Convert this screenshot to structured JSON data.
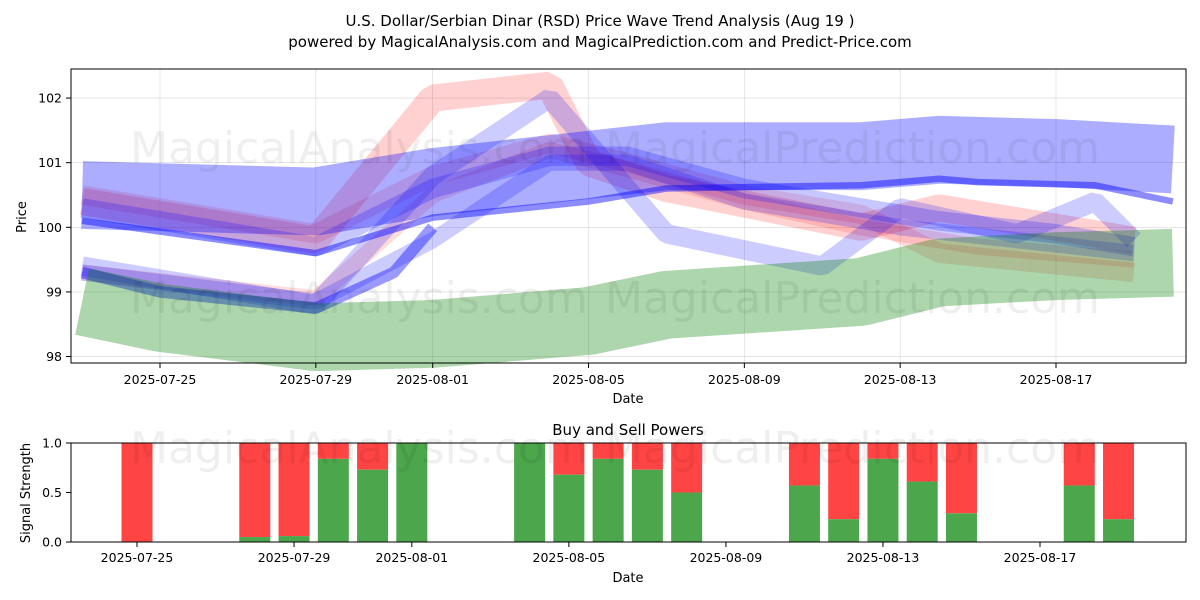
{
  "title": {
    "line1": "U.S. Dollar/Serbian Dinar (RSD) Price Wave Trend Analysis (Aug 19 )",
    "line2": "powered by MagicalAnalysis.com and MagicalPrediction.com and Predict-Price.com"
  },
  "watermarks": {
    "left": "MagicalAnalysis.com",
    "right": "MagicalPrediction.com"
  },
  "colors": {
    "red": "#ff0000",
    "blue": "#0000ff",
    "green": "#008000",
    "buy": "#4ca64c",
    "sell": "#ff4444",
    "grid": "#b0b0b0"
  },
  "chart_data": [
    {
      "type": "area",
      "title": "",
      "xlabel": "Date",
      "ylabel": "Price",
      "ylim": [
        97.9,
        102.45
      ],
      "x_ticks": [
        "2025-07-25",
        "2025-07-29",
        "2025-08-01",
        "2025-08-05",
        "2025-08-09",
        "2025-08-13",
        "2025-08-17"
      ],
      "y_ticks": [
        98,
        99,
        100,
        101,
        102
      ],
      "grid": true,
      "series": [
        {
          "name": "red-band-upper",
          "color": "red",
          "width": 0.42,
          "opacity": 0.18,
          "x": [
            "2025-07-23",
            "2025-07-29",
            "2025-08-01",
            "2025-08-04",
            "2025-08-05",
            "2025-08-07",
            "2025-08-12",
            "2025-08-14",
            "2025-08-19"
          ],
          "y": [
            100.4,
            99.8,
            102.0,
            102.2,
            101.0,
            100.6,
            100.0,
            100.3,
            99.8
          ]
        },
        {
          "name": "red-band-mid",
          "color": "red",
          "width": 0.3,
          "opacity": 0.14,
          "x": [
            "2025-07-23",
            "2025-07-29",
            "2025-08-01",
            "2025-08-04",
            "2025-08-06",
            "2025-08-09",
            "2025-08-12",
            "2025-08-14",
            "2025-08-19"
          ],
          "y": [
            100.5,
            99.9,
            100.8,
            101.3,
            101.0,
            100.5,
            100.2,
            99.6,
            99.3
          ]
        },
        {
          "name": "red-band-low",
          "color": "red",
          "width": 0.25,
          "opacity": 0.14,
          "x": [
            "2025-07-23",
            "2025-07-29",
            "2025-08-01",
            "2025-08-04",
            "2025-08-06",
            "2025-08-09",
            "2025-08-12",
            "2025-08-15",
            "2025-08-19"
          ],
          "y": [
            99.3,
            98.9,
            100.5,
            101.2,
            100.9,
            100.4,
            100.0,
            99.7,
            99.5
          ]
        },
        {
          "name": "blue-wide-band",
          "color": "blue",
          "width": 1.05,
          "opacity": 0.32,
          "x": [
            "2025-07-23",
            "2025-07-29",
            "2025-08-01",
            "2025-08-04",
            "2025-08-07",
            "2025-08-10",
            "2025-08-12",
            "2025-08-14",
            "2025-08-17",
            "2025-08-20"
          ],
          "y": [
            100.5,
            100.4,
            100.7,
            100.9,
            101.1,
            101.1,
            101.1,
            101.2,
            101.15,
            101.05
          ]
        },
        {
          "name": "blue-trend-line",
          "color": "blue",
          "width": 0.1,
          "opacity": 0.45,
          "x": [
            "2025-07-23",
            "2025-07-29",
            "2025-08-01",
            "2025-08-05",
            "2025-08-07",
            "2025-08-12",
            "2025-08-14",
            "2025-08-15",
            "2025-08-18",
            "2025-08-20"
          ],
          "y": [
            100.1,
            99.6,
            100.15,
            100.4,
            100.6,
            100.65,
            100.75,
            100.7,
            100.65,
            100.4
          ]
        },
        {
          "name": "blue-wave-1",
          "color": "blue",
          "width": 0.3,
          "opacity": 0.22,
          "x": [
            "2025-07-23",
            "2025-07-29",
            "2025-08-01",
            "2025-08-04",
            "2025-08-06",
            "2025-08-09",
            "2025-08-12",
            "2025-08-14",
            "2025-08-17",
            "2025-08-19"
          ],
          "y": [
            100.3,
            99.7,
            100.6,
            101.1,
            101.1,
            100.6,
            100.3,
            100.1,
            99.9,
            99.7
          ]
        },
        {
          "name": "blue-wave-2",
          "color": "blue",
          "width": 0.3,
          "opacity": 0.2,
          "x": [
            "2025-07-23",
            "2025-07-29",
            "2025-08-01",
            "2025-08-04",
            "2025-08-07",
            "2025-08-11",
            "2025-08-13",
            "2025-08-16",
            "2025-08-18",
            "2025-08-19"
          ],
          "y": [
            99.4,
            98.8,
            100.8,
            102.0,
            99.9,
            99.4,
            100.3,
            99.9,
            100.4,
            99.8
          ]
        },
        {
          "name": "blue-wave-3",
          "color": "blue",
          "width": 0.25,
          "opacity": 0.2,
          "x": [
            "2025-07-23",
            "2025-07-29",
            "2025-08-01",
            "2025-08-04",
            "2025-08-06",
            "2025-08-09",
            "2025-08-13",
            "2025-08-16",
            "2025-08-19"
          ],
          "y": [
            99.3,
            98.85,
            99.8,
            101.0,
            101.0,
            100.4,
            100.0,
            99.8,
            99.6
          ]
        },
        {
          "name": "blue-lower-line",
          "color": "blue",
          "width": 0.18,
          "opacity": 0.4,
          "x": [
            "2025-07-23",
            "2025-07-25",
            "2025-07-29",
            "2025-07-31",
            "2025-08-01"
          ],
          "y": [
            99.3,
            99.0,
            98.75,
            99.3,
            100.0
          ]
        },
        {
          "name": "green-band",
          "color": "green",
          "width": 1.05,
          "opacity": 0.32,
          "x": [
            "2025-07-23",
            "2025-07-25",
            "2025-07-29",
            "2025-08-01",
            "2025-08-05",
            "2025-08-07",
            "2025-08-12",
            "2025-08-14",
            "2025-08-17",
            "2025-08-20"
          ],
          "y": [
            98.85,
            98.6,
            98.3,
            98.35,
            98.55,
            98.8,
            99.0,
            99.3,
            99.4,
            99.45
          ]
        }
      ]
    },
    {
      "type": "bar",
      "title": "Buy and Sell Powers",
      "xlabel": "Date",
      "ylabel": "Signal Strength",
      "ylim": [
        0,
        1.0
      ],
      "x_ticks": [
        "2025-07-25",
        "2025-07-29",
        "2025-08-01",
        "2025-08-05",
        "2025-08-09",
        "2025-08-13",
        "2025-08-17"
      ],
      "y_ticks": [
        "0.0",
        "0.5",
        "1.0"
      ],
      "series": [
        {
          "name": "Buy",
          "color": "buy"
        },
        {
          "name": "Sell",
          "color": "sell"
        }
      ],
      "bars": [
        {
          "date": "2025-07-25",
          "buy": 0.0
        },
        {
          "date": "2025-07-28",
          "buy": 0.05
        },
        {
          "date": "2025-07-29",
          "buy": 0.06
        },
        {
          "date": "2025-07-30",
          "buy": 0.84
        },
        {
          "date": "2025-07-31",
          "buy": 0.73
        },
        {
          "date": "2025-08-01",
          "buy": 1.0
        },
        {
          "date": "2025-08-04",
          "buy": 1.0
        },
        {
          "date": "2025-08-05",
          "buy": 0.68
        },
        {
          "date": "2025-08-06",
          "buy": 0.84
        },
        {
          "date": "2025-08-07",
          "buy": 0.73
        },
        {
          "date": "2025-08-08",
          "buy": 0.5
        },
        {
          "date": "2025-08-11",
          "buy": 0.57
        },
        {
          "date": "2025-08-12",
          "buy": 0.23
        },
        {
          "date": "2025-08-13",
          "buy": 0.84
        },
        {
          "date": "2025-08-14",
          "buy": 0.61
        },
        {
          "date": "2025-08-15",
          "buy": 0.29
        },
        {
          "date": "2025-08-18",
          "buy": 0.57
        },
        {
          "date": "2025-08-19",
          "buy": 0.23
        }
      ]
    }
  ]
}
